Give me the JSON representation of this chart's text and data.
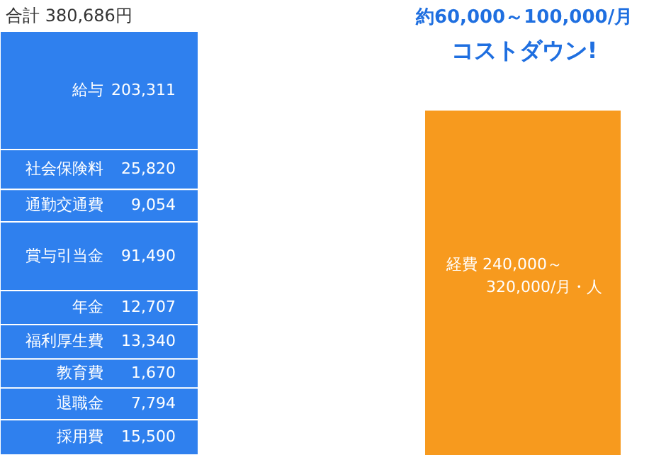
{
  "chart_data": {
    "type": "other",
    "categories": [
      "給与",
      "社会保険料",
      "通勤交通費",
      "賞与引当金",
      "年金",
      "福利厚生費",
      "教育費",
      "退職金",
      "採用費"
    ],
    "values": [
      203311,
      25820,
      9054,
      91490,
      12707,
      13340,
      1670,
      7794,
      15500
    ],
    "color": "#2f80ee",
    "value_labels": [
      "203,311",
      "25,820",
      "9,054",
      "91,490",
      "12,707",
      "13,340",
      "1,670",
      "7,794",
      "15,500"
    ],
    "annotations": [
      "合計 380,686円",
      "経費 240,000～",
      "320,000/月・人",
      "約60,000～100,000/月",
      "コストダウン!"
    ]
  }
}
